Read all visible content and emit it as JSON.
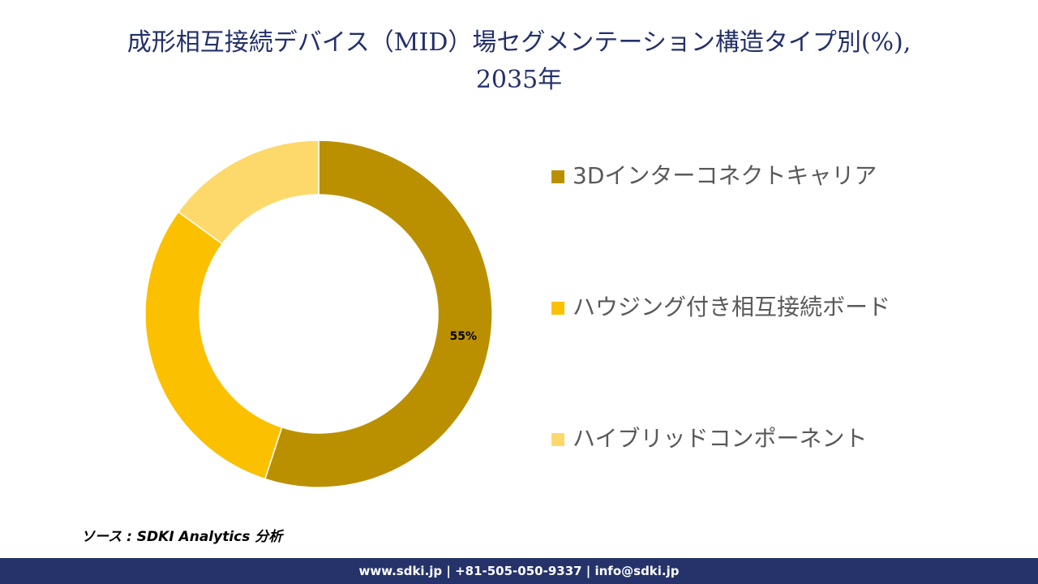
{
  "chart_data": {
    "type": "donut",
    "title": "成形相互接続デバイス（MID）場セグメンテーション構造タイプ別(%),\n2035年",
    "categories": [
      "3Dインターコネクトキャリア",
      "ハウジング付き相互接続ボード",
      "ハイブリッドコンポーネント"
    ],
    "values": [
      55,
      30,
      15
    ],
    "value_labels": [
      "55%",
      null,
      null
    ],
    "colors": [
      "#bb9000",
      "#fbc000",
      "#fcd96a"
    ]
  },
  "source": "ソース : SDKI Analytics 分析",
  "footer": "www.sdki.jp | +81-505-050-9337 | info@sdki.jp"
}
